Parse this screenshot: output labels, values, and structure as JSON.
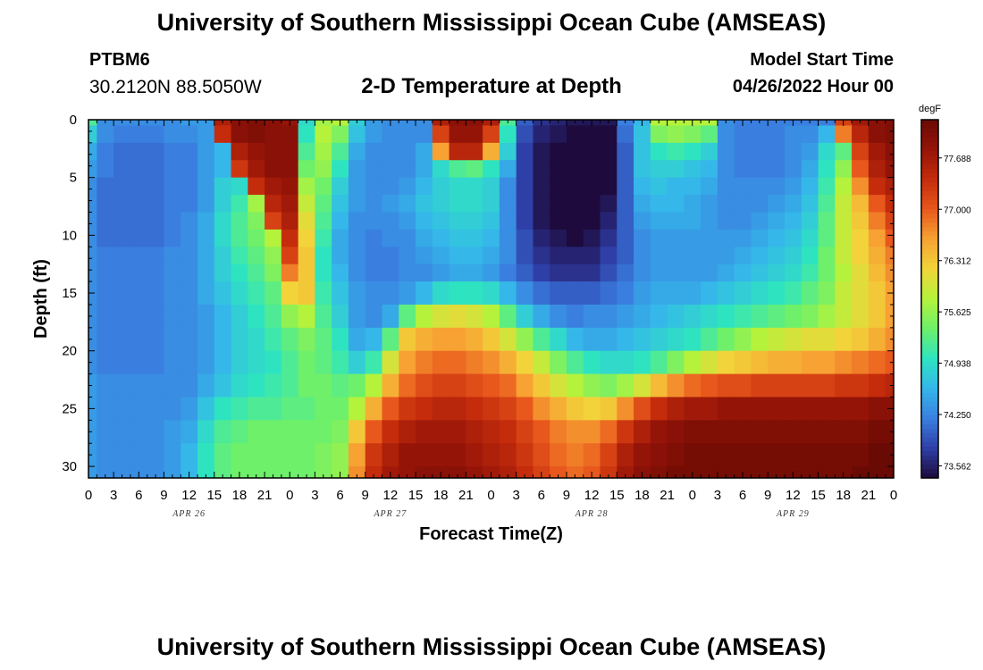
{
  "header": {
    "title": "University of Southern Mississippi Ocean Cube (AMSEAS)",
    "station_id": "PTBM6",
    "station_coords": "30.2120N  88.5050W",
    "plot_title": "2-D Temperature at Depth",
    "start_label": "Model Start Time",
    "start_value": "04/26/2022 Hour 00"
  },
  "footer": {
    "title": "University of Southern Mississippi Ocean Cube (AMSEAS)"
  },
  "colors": {
    "colormap": [
      "#1e0a3c",
      "#2f3fa8",
      "#3a7fe0",
      "#35b7ea",
      "#2ee4c0",
      "#6ef06a",
      "#b4f23c",
      "#f2d43a",
      "#f7a233",
      "#e8581c",
      "#c42c0c",
      "#951408",
      "#6a0a04"
    ],
    "frame": "#000000"
  },
  "chart_data": {
    "type": "heatmap",
    "title": "2-D Temperature at Depth",
    "xlabel": "Forecast Time(Z)",
    "ylabel": "Depth (ft)",
    "x_tick_labels": [
      "0",
      "3",
      "6",
      "9",
      "12",
      "15",
      "18",
      "21",
      "0",
      "3",
      "6",
      "9",
      "12",
      "15",
      "18",
      "21",
      "0",
      "3",
      "6",
      "9",
      "12",
      "15",
      "18",
      "21",
      "0",
      "3",
      "6",
      "9",
      "12",
      "15",
      "18",
      "21",
      "0"
    ],
    "date_labels": [
      {
        "label": "APR 26",
        "hour": 12
      },
      {
        "label": "APR 27",
        "hour": 36
      },
      {
        "label": "APR 28",
        "hour": 60
      },
      {
        "label": "APR 29",
        "hour": 84
      }
    ],
    "x_range_hours": [
      0,
      96
    ],
    "y_ticks": [
      0,
      5,
      10,
      15,
      20,
      25,
      30
    ],
    "y_range_ft": [
      0,
      31
    ],
    "colorbar": {
      "unit": "degF",
      "ticks": [
        "77.688",
        "77.000",
        "76.312",
        "75.625",
        "74.938",
        "74.250",
        "73.562"
      ],
      "range": [
        73.4,
        78.2
      ]
    },
    "depth_levels_ft": [
      0,
      1,
      3,
      4,
      6,
      7,
      9,
      10,
      12,
      13,
      15,
      17,
      19,
      21,
      23,
      25,
      27,
      29,
      31
    ],
    "hours": [
      0,
      2,
      4,
      6,
      8,
      10,
      12,
      14,
      16,
      18,
      20,
      22,
      24,
      26,
      28,
      30,
      32,
      34,
      36,
      38,
      40,
      42,
      44,
      46,
      48,
      50,
      52,
      54,
      56,
      58,
      60,
      62,
      64,
      66,
      68,
      70,
      72,
      74,
      76,
      78,
      80,
      82,
      84,
      86,
      88,
      90,
      92,
      94,
      96
    ],
    "temperature_degF": [
      [
        75.2,
        74.3,
        74.3,
        74.3,
        74.3,
        74.3,
        74.4,
        74.4,
        77.6,
        77.9,
        78.0,
        77.9,
        77.8,
        74.9,
        75.7,
        75.8,
        74.8,
        74.4,
        74.3,
        74.3,
        74.3,
        77.6,
        77.9,
        77.9,
        77.6,
        75.2,
        74.0,
        73.7,
        73.6,
        73.5,
        73.5,
        73.5,
        74.2,
        74.6,
        75.8,
        75.8,
        75.8,
        75.8,
        74.3,
        74.2,
        74.2,
        74.2,
        74.2,
        74.2,
        74.2,
        77.2,
        77.7,
        77.9,
        78.0
      ],
      [
        74.8,
        74.3,
        74.2,
        74.2,
        74.2,
        74.3,
        74.3,
        74.4,
        77.4,
        77.9,
        78.0,
        77.9,
        77.9,
        75.0,
        75.8,
        75.5,
        74.7,
        74.4,
        74.3,
        74.3,
        74.3,
        77.2,
        77.8,
        77.8,
        77.2,
        75.0,
        73.9,
        73.6,
        73.5,
        73.4,
        73.4,
        73.4,
        74.1,
        74.7,
        75.5,
        75.6,
        75.5,
        75.3,
        74.3,
        74.2,
        74.2,
        74.2,
        74.3,
        74.3,
        74.6,
        76.8,
        77.5,
        77.9,
        78.0
      ],
      [
        74.5,
        74.2,
        74.1,
        74.1,
        74.1,
        74.2,
        74.2,
        74.4,
        74.6,
        77.6,
        77.8,
        77.9,
        77.9,
        75.2,
        75.7,
        75.2,
        74.5,
        74.3,
        74.3,
        74.3,
        74.5,
        76.6,
        77.5,
        77.5,
        76.5,
        74.8,
        73.8,
        73.5,
        73.4,
        73.3,
        73.3,
        73.4,
        74.0,
        74.7,
        75.0,
        75.1,
        75.0,
        74.8,
        74.3,
        74.2,
        74.2,
        74.2,
        74.3,
        74.4,
        74.9,
        75.3,
        77.2,
        77.7,
        77.9
      ],
      [
        74.4,
        74.2,
        74.1,
        74.1,
        74.1,
        74.2,
        74.2,
        74.4,
        74.6,
        77.3,
        77.7,
        77.9,
        77.9,
        75.4,
        75.6,
        75.0,
        74.4,
        74.3,
        74.3,
        74.3,
        74.5,
        74.9,
        75.2,
        75.3,
        75.0,
        74.5,
        73.8,
        73.5,
        73.4,
        73.3,
        73.3,
        73.4,
        74.0,
        74.7,
        74.8,
        74.8,
        74.7,
        74.6,
        74.3,
        74.2,
        74.2,
        74.2,
        74.3,
        74.5,
        75.0,
        75.6,
        77.0,
        77.6,
        77.8
      ],
      [
        74.3,
        74.1,
        74.1,
        74.1,
        74.1,
        74.2,
        74.2,
        74.4,
        74.8,
        74.9,
        77.4,
        77.7,
        77.8,
        75.7,
        75.4,
        74.8,
        74.4,
        74.3,
        74.3,
        74.4,
        74.6,
        74.8,
        74.9,
        74.9,
        74.8,
        74.3,
        73.8,
        73.5,
        73.3,
        73.2,
        73.3,
        73.4,
        74.0,
        74.6,
        74.7,
        74.6,
        74.6,
        74.5,
        74.3,
        74.3,
        74.3,
        74.3,
        74.4,
        74.6,
        75.1,
        75.8,
        76.7,
        77.4,
        77.6
      ],
      [
        74.3,
        74.1,
        74.1,
        74.1,
        74.1,
        74.2,
        74.2,
        74.4,
        74.8,
        75.1,
        75.7,
        77.5,
        77.7,
        75.9,
        75.3,
        74.7,
        74.4,
        74.3,
        74.4,
        74.5,
        74.7,
        74.8,
        74.9,
        74.9,
        74.8,
        74.3,
        73.8,
        73.5,
        73.3,
        73.2,
        73.3,
        73.5,
        74.0,
        74.5,
        74.6,
        74.6,
        74.5,
        74.4,
        74.3,
        74.3,
        74.3,
        74.4,
        74.5,
        74.7,
        75.2,
        75.9,
        76.4,
        77.0,
        77.4
      ],
      [
        74.3,
        74.1,
        74.1,
        74.1,
        74.1,
        74.2,
        74.3,
        74.5,
        74.9,
        75.2,
        75.5,
        77.2,
        77.6,
        76.1,
        75.2,
        74.6,
        74.3,
        74.3,
        74.3,
        74.4,
        74.6,
        74.7,
        74.8,
        74.8,
        74.7,
        74.3,
        73.8,
        73.5,
        73.4,
        73.3,
        73.4,
        73.6,
        74.0,
        74.4,
        74.5,
        74.5,
        74.5,
        74.4,
        74.3,
        74.3,
        74.4,
        74.5,
        74.6,
        74.8,
        75.3,
        75.9,
        76.3,
        76.8,
        77.2
      ],
      [
        74.3,
        74.1,
        74.1,
        74.1,
        74.1,
        74.2,
        74.3,
        74.5,
        74.9,
        75.2,
        75.4,
        75.8,
        77.4,
        76.2,
        75.1,
        74.5,
        74.3,
        74.2,
        74.3,
        74.3,
        74.5,
        74.6,
        74.7,
        74.7,
        74.6,
        74.3,
        73.9,
        73.6,
        73.5,
        73.4,
        73.5,
        73.7,
        74.0,
        74.3,
        74.4,
        74.4,
        74.4,
        74.4,
        74.4,
        74.4,
        74.5,
        74.6,
        74.7,
        74.9,
        75.3,
        75.9,
        76.2,
        76.6,
        77.0
      ],
      [
        74.3,
        74.2,
        74.2,
        74.2,
        74.2,
        74.3,
        74.3,
        74.5,
        74.8,
        75.1,
        75.3,
        75.6,
        77.2,
        76.3,
        75.0,
        74.5,
        74.3,
        74.2,
        74.2,
        74.3,
        74.4,
        74.5,
        74.6,
        74.6,
        74.5,
        74.3,
        73.9,
        73.7,
        73.6,
        73.6,
        73.6,
        73.8,
        74.0,
        74.3,
        74.4,
        74.4,
        74.4,
        74.4,
        74.4,
        74.5,
        74.6,
        74.7,
        74.8,
        75.0,
        75.4,
        75.9,
        76.2,
        76.5,
        76.8
      ],
      [
        74.3,
        74.2,
        74.2,
        74.2,
        74.2,
        74.3,
        74.3,
        74.5,
        74.8,
        75.0,
        75.2,
        75.5,
        76.8,
        76.3,
        75.0,
        74.6,
        74.3,
        74.2,
        74.2,
        74.3,
        74.3,
        74.4,
        74.5,
        74.5,
        74.4,
        74.2,
        74.0,
        73.8,
        73.7,
        73.7,
        73.7,
        73.9,
        74.1,
        74.3,
        74.4,
        74.4,
        74.4,
        74.4,
        74.5,
        74.6,
        74.7,
        74.8,
        74.9,
        75.1,
        75.4,
        75.8,
        76.1,
        76.4,
        76.7
      ],
      [
        74.3,
        74.2,
        74.2,
        74.2,
        74.2,
        74.3,
        74.3,
        74.5,
        74.7,
        74.9,
        75.1,
        75.3,
        76.2,
        76.3,
        75.1,
        74.7,
        74.4,
        74.3,
        74.3,
        74.4,
        74.6,
        74.9,
        75.0,
        75.0,
        74.9,
        74.6,
        74.3,
        74.1,
        74.0,
        74.0,
        74.0,
        74.1,
        74.2,
        74.4,
        74.5,
        74.5,
        74.5,
        74.6,
        74.7,
        74.8,
        74.9,
        75.0,
        75.1,
        75.3,
        75.5,
        75.9,
        76.1,
        76.3,
        76.6
      ],
      [
        74.3,
        74.2,
        74.2,
        74.2,
        74.2,
        74.3,
        74.3,
        74.4,
        74.6,
        74.8,
        75.0,
        75.2,
        75.6,
        75.8,
        75.2,
        74.8,
        74.4,
        74.3,
        74.5,
        75.3,
        75.8,
        76.0,
        76.1,
        76.0,
        75.8,
        75.3,
        74.8,
        74.5,
        74.3,
        74.2,
        74.3,
        74.3,
        74.4,
        74.5,
        74.6,
        74.7,
        74.8,
        74.9,
        75.0,
        75.1,
        75.2,
        75.3,
        75.4,
        75.5,
        75.7,
        75.9,
        76.1,
        76.3,
        76.6
      ],
      [
        74.3,
        74.2,
        74.2,
        74.2,
        74.2,
        74.3,
        74.3,
        74.4,
        74.6,
        74.8,
        74.9,
        75.1,
        75.3,
        75.5,
        75.3,
        75.0,
        74.5,
        74.6,
        75.3,
        76.3,
        76.5,
        76.6,
        76.6,
        76.5,
        76.3,
        76.0,
        75.6,
        75.2,
        74.9,
        74.6,
        74.5,
        74.5,
        74.6,
        74.7,
        74.8,
        74.9,
        75.0,
        75.2,
        75.4,
        75.6,
        75.8,
        75.9,
        76.0,
        76.1,
        76.1,
        76.2,
        76.3,
        76.5,
        76.7
      ],
      [
        74.3,
        74.2,
        74.2,
        74.2,
        74.2,
        74.3,
        74.3,
        74.4,
        74.6,
        74.8,
        74.9,
        75.0,
        75.2,
        75.4,
        75.3,
        75.1,
        74.8,
        75.1,
        76.0,
        76.6,
        76.8,
        76.9,
        76.9,
        76.8,
        76.7,
        76.5,
        76.2,
        75.9,
        75.5,
        75.2,
        75.0,
        74.9,
        74.9,
        75.0,
        75.2,
        75.5,
        75.8,
        76.0,
        76.2,
        76.3,
        76.4,
        76.5,
        76.5,
        76.6,
        76.6,
        76.7,
        76.8,
        76.9,
        77.0
      ],
      [
        74.4,
        74.3,
        74.3,
        74.3,
        74.3,
        74.3,
        74.3,
        74.5,
        74.7,
        74.9,
        75.0,
        75.1,
        75.2,
        75.4,
        75.4,
        75.3,
        75.4,
        75.8,
        76.5,
        76.9,
        77.1,
        77.2,
        77.2,
        77.1,
        77.0,
        76.9,
        76.6,
        76.3,
        76.0,
        75.8,
        75.6,
        75.5,
        75.7,
        76.0,
        76.4,
        76.7,
        76.9,
        77.0,
        77.1,
        77.1,
        77.2,
        77.2,
        77.2,
        77.2,
        77.2,
        77.3,
        77.3,
        77.4,
        77.5
      ],
      [
        74.4,
        74.3,
        74.3,
        74.3,
        74.3,
        74.3,
        74.4,
        74.7,
        75.0,
        75.1,
        75.2,
        75.2,
        75.3,
        75.3,
        75.4,
        75.4,
        75.8,
        76.5,
        77.0,
        77.3,
        77.4,
        77.5,
        77.5,
        77.4,
        77.3,
        77.2,
        77.0,
        76.7,
        76.5,
        76.3,
        76.2,
        76.3,
        76.7,
        77.1,
        77.4,
        77.6,
        77.7,
        77.7,
        77.8,
        77.8,
        77.8,
        77.8,
        77.8,
        77.8,
        77.8,
        77.8,
        77.8,
        77.9,
        77.9
      ],
      [
        74.4,
        74.3,
        74.3,
        74.3,
        74.3,
        74.4,
        74.5,
        74.9,
        75.2,
        75.3,
        75.4,
        75.4,
        75.4,
        75.4,
        75.4,
        75.5,
        76.3,
        77.0,
        77.4,
        77.6,
        77.7,
        77.7,
        77.7,
        77.6,
        77.5,
        77.4,
        77.2,
        77.0,
        76.8,
        76.7,
        76.7,
        76.9,
        77.3,
        77.6,
        77.8,
        77.9,
        78.0,
        78.0,
        78.0,
        78.0,
        78.0,
        78.0,
        78.0,
        78.0,
        78.0,
        78.0,
        78.0,
        78.1,
        78.1
      ],
      [
        74.4,
        74.3,
        74.3,
        74.3,
        74.3,
        74.4,
        74.6,
        75.0,
        75.3,
        75.4,
        75.4,
        75.4,
        75.4,
        75.4,
        75.5,
        75.6,
        76.6,
        77.3,
        77.6,
        77.8,
        77.8,
        77.8,
        77.8,
        77.7,
        77.6,
        77.5,
        77.3,
        77.1,
        76.9,
        76.8,
        76.9,
        77.2,
        77.6,
        77.8,
        77.9,
        78.0,
        78.1,
        78.1,
        78.1,
        78.1,
        78.1,
        78.1,
        78.1,
        78.1,
        78.1,
        78.1,
        78.1,
        78.2,
        78.2
      ],
      [
        74.4,
        74.3,
        74.3,
        74.3,
        74.3,
        74.4,
        74.6,
        75.0,
        75.3,
        75.4,
        75.4,
        75.4,
        75.4,
        75.4,
        75.5,
        75.6,
        76.7,
        77.4,
        77.7,
        77.8,
        77.9,
        77.9,
        77.9,
        77.8,
        77.7,
        77.6,
        77.4,
        77.2,
        77.0,
        76.9,
        77.0,
        77.3,
        77.7,
        77.9,
        78.0,
        78.1,
        78.1,
        78.1,
        78.1,
        78.1,
        78.1,
        78.1,
        78.1,
        78.1,
        78.1,
        78.1,
        78.2,
        78.2,
        78.2
      ]
    ]
  }
}
